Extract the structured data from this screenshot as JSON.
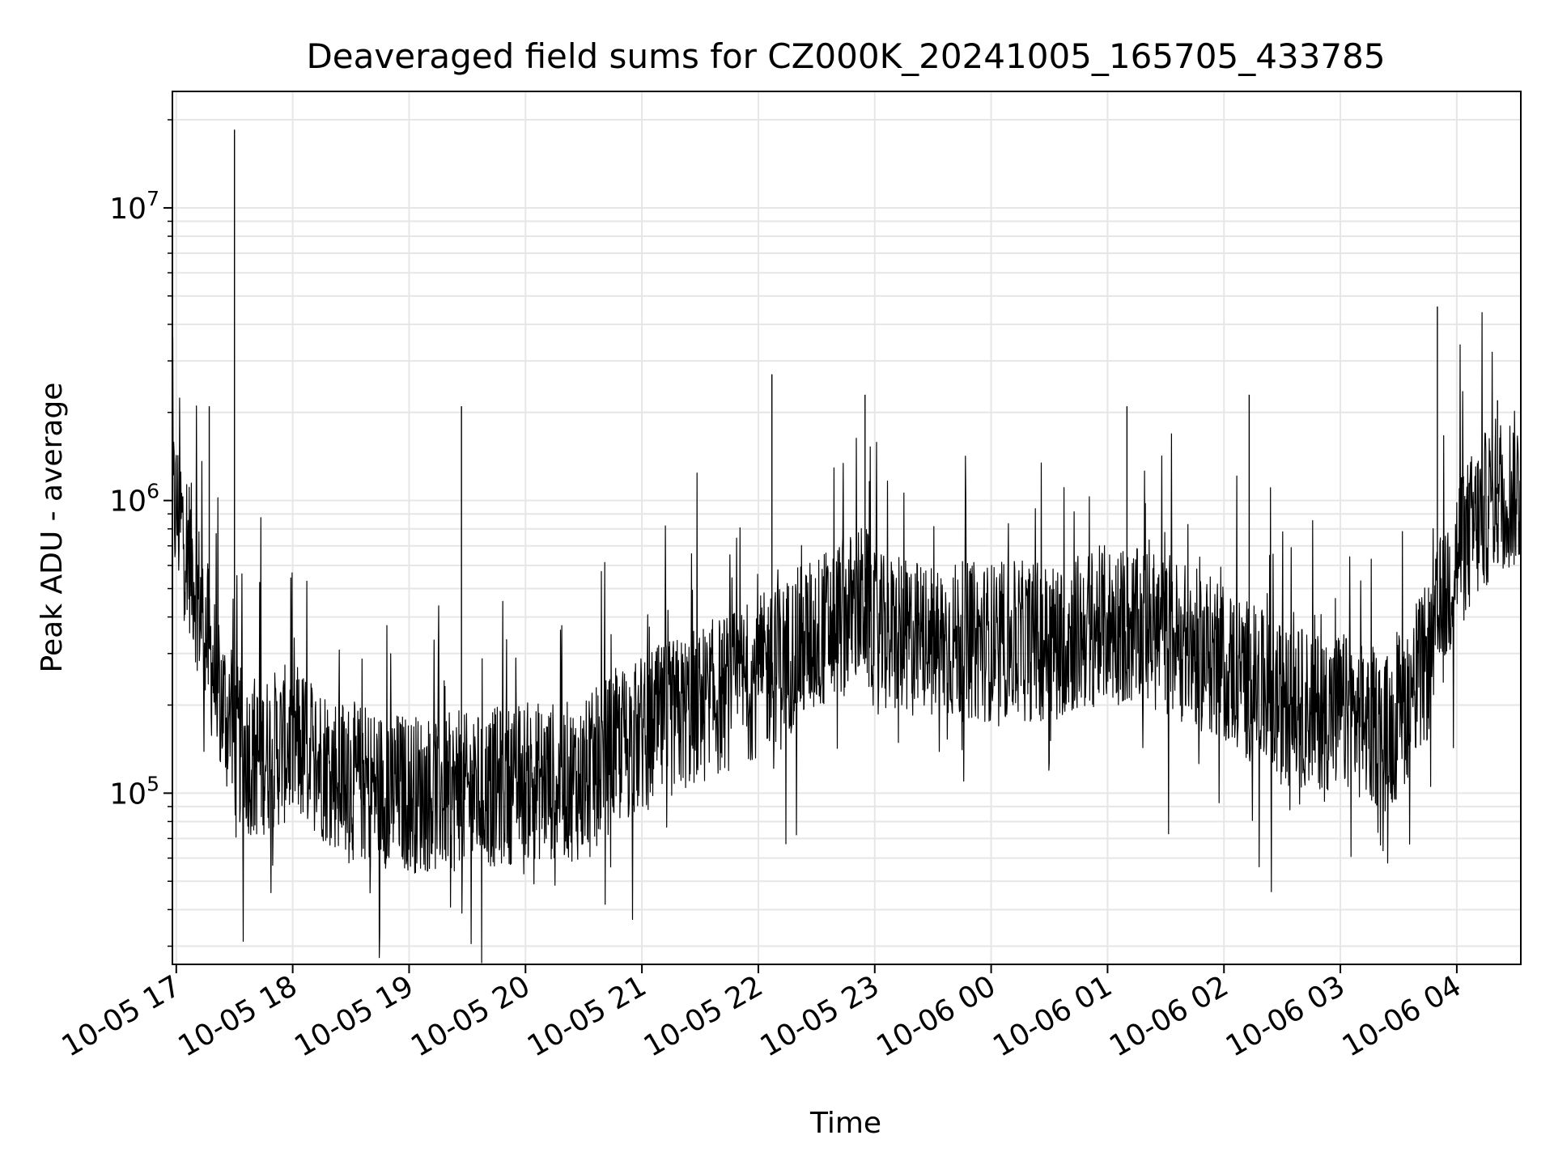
{
  "chart_data": {
    "type": "line",
    "title": "Deaveraged field sums for CZ000K_20241005_165705_433785",
    "xlabel": "Time",
    "ylabel": "Peak ADU - average",
    "yscale": "log",
    "ylim": [
      26000,
      25000000
    ],
    "xlim": [
      "2024-10-05 16:58",
      "2024-10-06 04:33"
    ],
    "grid": true,
    "x_ticks": [
      "10-05 17",
      "10-05 18",
      "10-05 19",
      "10-05 20",
      "10-05 21",
      "10-05 22",
      "10-05 23",
      "10-06 00",
      "10-06 01",
      "10-06 02",
      "10-06 03",
      "10-06 04"
    ],
    "y_ticks": [
      {
        "base": "10",
        "exp": "5",
        "value": 100000
      },
      {
        "base": "10",
        "exp": "6",
        "value": 1000000
      },
      {
        "base": "10",
        "exp": "7",
        "value": 10000000
      }
    ],
    "colors": {
      "series": "#000000",
      "grid": "#e6e6e6"
    },
    "series": [
      {
        "x": [
          "2024-10-05 16:58",
          "2024-10-05 17:05",
          "2024-10-05 17:12",
          "2024-10-05 17:20",
          "2024-10-05 17:30",
          "2024-10-05 17:40",
          "2024-10-05 17:50",
          "2024-10-05 18:00",
          "2024-10-05 18:30",
          "2024-10-05 19:00",
          "2024-10-05 19:30",
          "2024-10-05 20:00",
          "2024-10-05 20:30",
          "2024-10-05 20:45",
          "2024-10-05 21:00",
          "2024-10-05 21:30",
          "2024-10-05 22:00",
          "2024-10-05 22:30",
          "2024-10-05 22:55",
          "2024-10-05 23:00",
          "2024-10-05 23:30",
          "2024-10-06 00:00",
          "2024-10-06 00:30",
          "2024-10-06 01:00",
          "2024-10-06 01:30",
          "2024-10-06 02:00",
          "2024-10-06 02:30",
          "2024-10-06 03:00",
          "2024-10-06 03:25",
          "2024-10-06 03:45",
          "2024-10-06 04:00",
          "2024-10-06 04:20",
          "2024-10-06 04:33"
        ],
        "y": [
          1000000,
          750000,
          450000,
          250000,
          150000,
          130000,
          140000,
          150000,
          110000,
          100000,
          100000,
          110000,
          110000,
          140000,
          160000,
          200000,
          250000,
          350000,
          450000,
          350000,
          330000,
          330000,
          330000,
          380000,
          350000,
          280000,
          200000,
          190000,
          160000,
          280000,
          650000,
          1050000,
          1100000
        ]
      }
    ],
    "spikes": [
      {
        "x": "2024-10-05 17:30",
        "y": 18500000
      },
      {
        "x": "2024-10-05 17:17",
        "y": 2100000
      },
      {
        "x": "2024-10-05 19:27",
        "y": 2100000
      },
      {
        "x": "2024-10-05 22:07",
        "y": 2700000
      },
      {
        "x": "2024-10-05 22:55",
        "y": 2300000
      },
      {
        "x": "2024-10-06 01:10",
        "y": 2100000
      },
      {
        "x": "2024-10-06 02:13",
        "y": 2300000
      },
      {
        "x": "2024-10-06 03:50",
        "y": 4600000
      },
      {
        "x": "2024-10-06 04:21",
        "y": 2200000
      }
    ]
  }
}
